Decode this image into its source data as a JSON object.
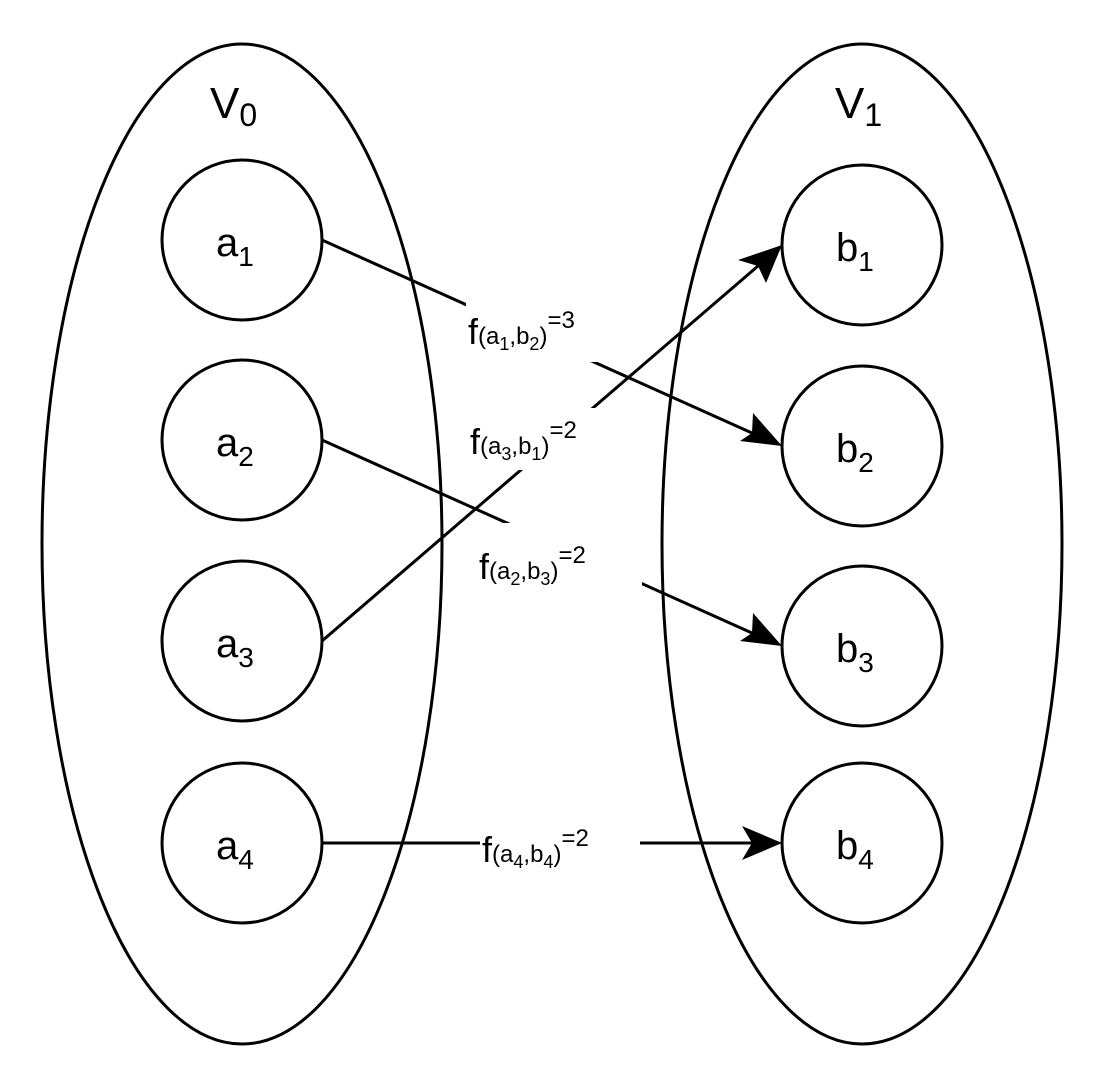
{
  "sets": [
    {
      "label": "V",
      "sub": "0"
    },
    {
      "label": "V",
      "sub": "1"
    }
  ],
  "nodes": {
    "a1": {
      "label": "a",
      "sub": "1"
    },
    "a2": {
      "label": "a",
      "sub": "2"
    },
    "a3": {
      "label": "a",
      "sub": "3"
    },
    "a4": {
      "label": "a",
      "sub": "4"
    },
    "b1": {
      "label": "b",
      "sub": "1"
    },
    "b2": {
      "label": "b",
      "sub": "2"
    },
    "b3": {
      "label": "b",
      "sub": "3"
    },
    "b4": {
      "label": "b",
      "sub": "4"
    }
  },
  "edges": [
    {
      "from": "a1",
      "to": "b2",
      "f": "f",
      "open": "(",
      "a": "a",
      "a_sub": "1",
      "comma": ",",
      "b": "b",
      "b_sub": "2",
      "close": ")",
      "value": "=3"
    },
    {
      "from": "a3",
      "to": "b1",
      "f": "f",
      "open": "(",
      "a": "a",
      "a_sub": "3",
      "comma": ",",
      "b": "b",
      "b_sub": "1",
      "close": ")",
      "value": "=2"
    },
    {
      "from": "a2",
      "to": "b3",
      "f": "f",
      "open": "(",
      "a": "a",
      "a_sub": "2",
      "comma": ",",
      "b": "b",
      "b_sub": "3",
      "close": ")",
      "value": "=2"
    },
    {
      "from": "a4",
      "to": "b4",
      "f": "f",
      "open": "(",
      "a": "a",
      "a_sub": "4",
      "comma": ",",
      "b": "b",
      "b_sub": "4",
      "close": ")",
      "value": "=2"
    }
  ]
}
